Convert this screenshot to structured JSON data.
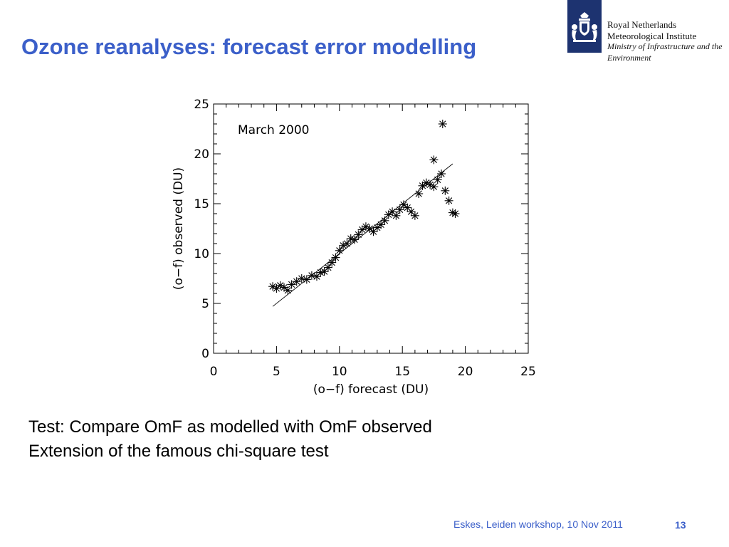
{
  "slide": {
    "title": "Ozone reanalyses: forecast error modelling",
    "body_lines": [
      "Test: Compare OmF as modelled with OmF observed",
      "Extension of the famous chi-square test"
    ],
    "footer": "Eskes, Leiden workshop, 10 Nov 2011",
    "page_number": "13",
    "accent_color": "#3b5fc9"
  },
  "logo": {
    "lines": [
      "Royal Netherlands",
      "Meteorological Institute",
      "Ministry of Infrastructure and the",
      "Environment"
    ],
    "icon": "royal-coat-of-arms-icon",
    "color": "#1d3370"
  },
  "chart_data": {
    "type": "scatter",
    "annotation": "March 2000",
    "xlabel": "(o−f) forecast (DU)",
    "ylabel": "(o−f) observed (DU)",
    "xlim": [
      0,
      25
    ],
    "ylim": [
      0,
      25
    ],
    "xticks": [
      "0",
      "5",
      "10",
      "15",
      "20",
      "25"
    ],
    "yticks": [
      "0",
      "5",
      "10",
      "15",
      "20",
      "25"
    ],
    "grid": false,
    "legend": "none",
    "marker": "asterisk",
    "series": [
      {
        "x": [
          4.7,
          5.0,
          5.3,
          5.6,
          5.9,
          6.2,
          6.6,
          7.0,
          7.4,
          7.8,
          8.2,
          8.5,
          8.8,
          9.1,
          9.4,
          9.7,
          10.0,
          10.3,
          10.6,
          10.9,
          11.2,
          11.5,
          11.8,
          12.1,
          12.4,
          12.7,
          13.0,
          13.3,
          13.6,
          13.9,
          14.2,
          14.5,
          14.8,
          15.1,
          15.4,
          15.7,
          16.0,
          16.3,
          16.6,
          16.9,
          17.2,
          17.5,
          17.8,
          18.1,
          18.4,
          18.7,
          19.0,
          19.2,
          17.5,
          18.2
        ],
        "y": [
          6.7,
          6.5,
          6.8,
          6.6,
          6.3,
          6.9,
          7.2,
          7.5,
          7.4,
          7.8,
          7.7,
          8.1,
          8.2,
          8.6,
          9.1,
          9.6,
          10.3,
          10.8,
          11.0,
          11.5,
          11.4,
          11.9,
          12.4,
          12.7,
          12.5,
          12.2,
          12.6,
          12.9,
          13.3,
          13.9,
          14.2,
          13.8,
          14.4,
          14.9,
          14.6,
          14.2,
          13.8,
          16.0,
          16.8,
          17.1,
          16.9,
          16.7,
          17.4,
          18.0,
          16.3,
          15.3,
          14.1,
          14.0,
          19.4,
          23.0
        ]
      }
    ],
    "fit_line": {
      "x": [
        4.7,
        19.0
      ],
      "y": [
        4.7,
        19.0
      ]
    }
  }
}
